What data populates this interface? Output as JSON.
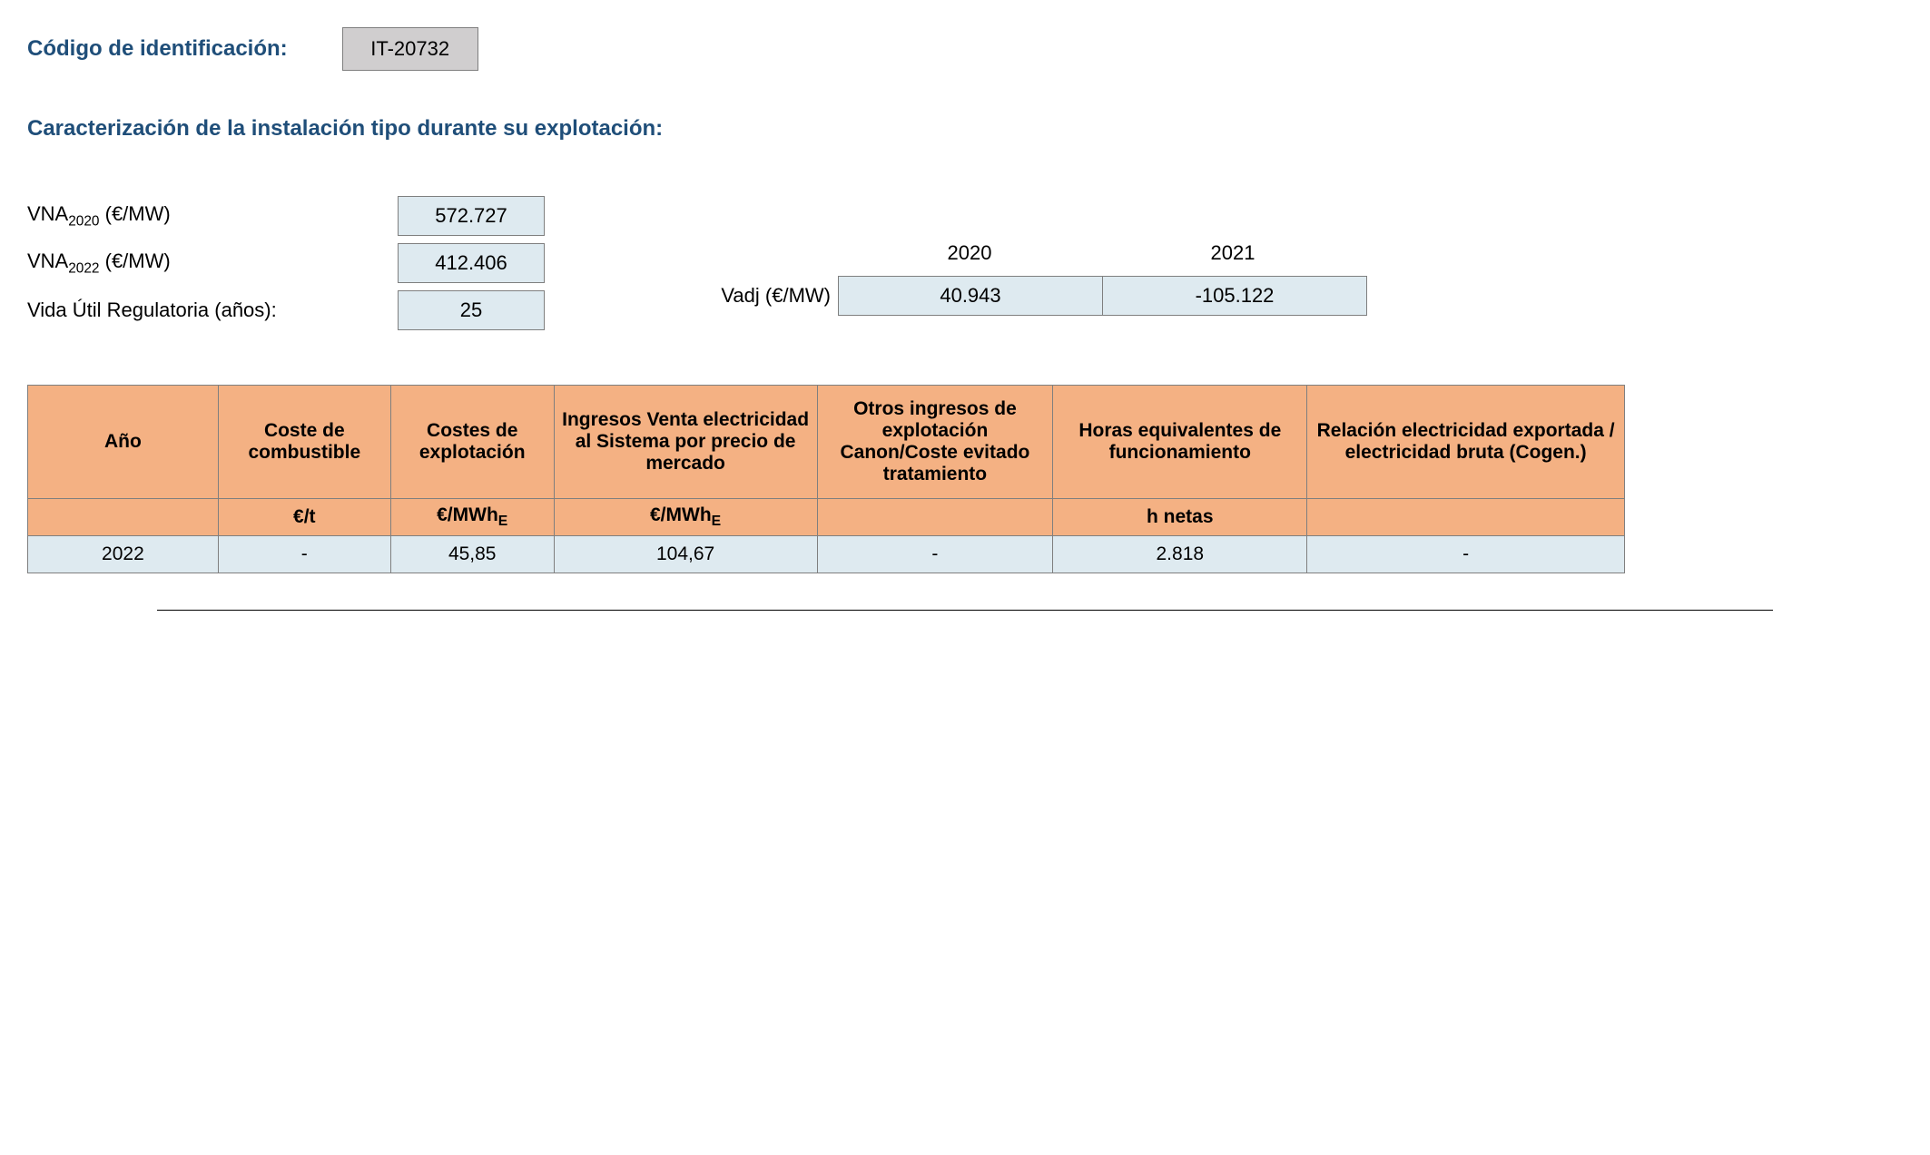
{
  "header": {
    "code_label": "Código de identificación:",
    "code_value": "IT-20732"
  },
  "section_title": "Caracterización de la instalación tipo durante su explotación:",
  "params_left": [
    {
      "label_pre": "VNA",
      "label_sub": "2020",
      "label_post": " (€/MW)",
      "value": "572.727"
    },
    {
      "label_pre": "VNA",
      "label_sub": "2022",
      "label_post": " (€/MW)",
      "value": "412.406"
    },
    {
      "label_pre": "Vida Útil Regulatoria (años):",
      "label_sub": "",
      "label_post": "",
      "value": "25"
    }
  ],
  "vadj": {
    "years": [
      "2020",
      "2021"
    ],
    "label": "Vadj (€/MW)",
    "values": [
      "40.943",
      "-105.122"
    ]
  },
  "table": {
    "headers": [
      "Año",
      "Coste de combustible",
      "Costes de explotación",
      "Ingresos Venta electricidad al Sistema por precio de mercado",
      "Otros ingresos de explotación Canon/Coste evitado tratamiento",
      "Horas equivalentes de funcionamiento",
      "Relación electricidad exportada / electricidad bruta (Cogen.)"
    ],
    "units": [
      "",
      "€/t",
      "€/MWh",
      "€/MWh",
      "",
      "h netas",
      ""
    ],
    "units_sub": [
      "",
      "",
      "E",
      "E",
      "",
      "",
      ""
    ],
    "rows": [
      [
        "2022",
        "-",
        "45,85",
        "104,67",
        "-",
        "2.818",
        "-"
      ]
    ]
  },
  "colors": {
    "header_blue": "#1f4e79",
    "code_bg": "#d0cecf",
    "orange_bg": "#f4b183",
    "lightblue_bg": "#deeaf0",
    "border": "#7f7f7f"
  }
}
